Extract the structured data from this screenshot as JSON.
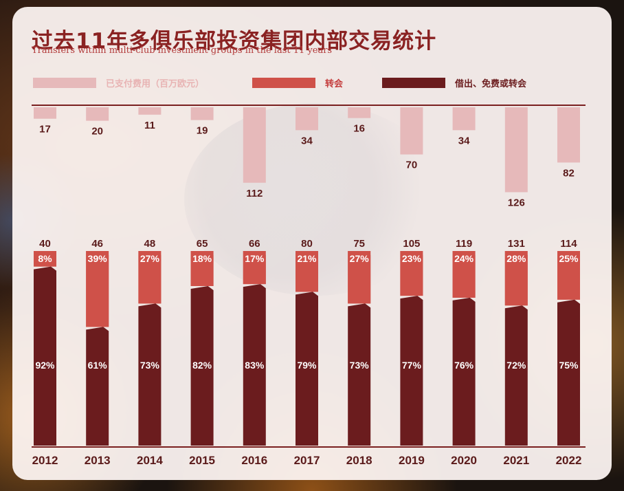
{
  "title": "过去11年多俱乐部投资集团内部交易统计",
  "subtitle": "Transfers within multi-club investment groups in the last 11 years",
  "colors": {
    "fee": "#e6b9ba",
    "transfer": "#cf5149",
    "loan_free": "#6b1c1e",
    "axis": "#7a1f1f",
    "text": "#5a1a1a"
  },
  "legend": [
    {
      "label": "已支付费用（百万欧元）",
      "color": "#e6b9ba",
      "text_color": "#e8b3b3"
    },
    {
      "label": "转会",
      "color": "#cf5149",
      "text_color": "#c43c3c"
    },
    {
      "label": "借出、免费或转会",
      "color": "#6b1c1e",
      "text_color": "#6b1c1e"
    }
  ],
  "chart_data": {
    "type": "bar",
    "categories": [
      "2012",
      "2013",
      "2014",
      "2015",
      "2016",
      "2017",
      "2018",
      "2019",
      "2020",
      "2021",
      "2022"
    ],
    "series": [
      {
        "name": "已支付费用（百万欧元）",
        "values": [
          17,
          20,
          11,
          19,
          112,
          34,
          16,
          70,
          34,
          126,
          82
        ]
      },
      {
        "name": "转会",
        "values": [
          "8%",
          "39%",
          "27%",
          "18%",
          "17%",
          "21%",
          "27%",
          "23%",
          "24%",
          "28%",
          "25%"
        ]
      },
      {
        "name": "借出、免费或转会",
        "values": [
          "92%",
          "61%",
          "73%",
          "82%",
          "83%",
          "79%",
          "73%",
          "77%",
          "76%",
          "72%",
          "75%"
        ]
      }
    ],
    "totals": [
      40,
      46,
      48,
      65,
      66,
      80,
      75,
      105,
      119,
      131,
      114
    ]
  }
}
